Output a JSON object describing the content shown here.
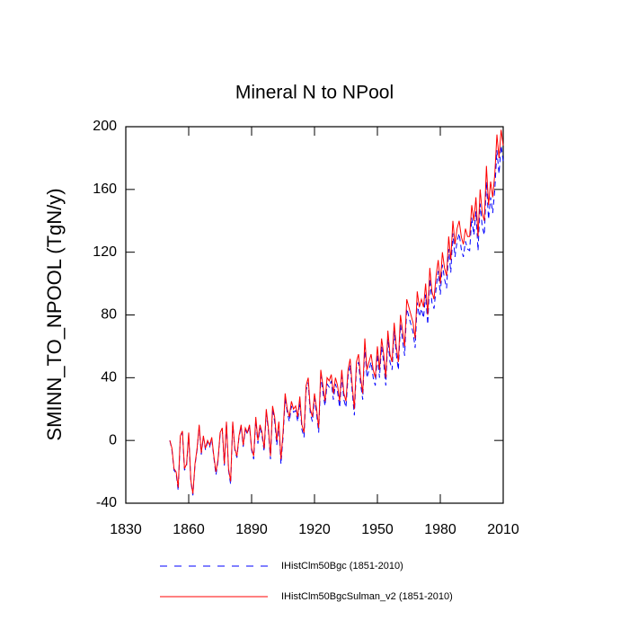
{
  "chart_data": {
    "type": "line",
    "title": "Mineral N to NPool",
    "y_label": "SMINN_TO_NPOOL  (TgN/y)",
    "x": [
      1851,
      1852,
      1853,
      1854,
      1855,
      1856,
      1857,
      1858,
      1859,
      1860,
      1861,
      1862,
      1863,
      1864,
      1865,
      1866,
      1867,
      1868,
      1869,
      1870,
      1871,
      1872,
      1873,
      1874,
      1875,
      1876,
      1877,
      1878,
      1879,
      1880,
      1881,
      1882,
      1883,
      1884,
      1885,
      1886,
      1887,
      1888,
      1889,
      1890,
      1891,
      1892,
      1893,
      1894,
      1895,
      1896,
      1897,
      1898,
      1899,
      1900,
      1901,
      1902,
      1903,
      1904,
      1905,
      1906,
      1907,
      1908,
      1909,
      1910,
      1911,
      1912,
      1913,
      1914,
      1915,
      1916,
      1917,
      1918,
      1919,
      1920,
      1921,
      1922,
      1923,
      1924,
      1925,
      1926,
      1927,
      1928,
      1929,
      1930,
      1931,
      1932,
      1933,
      1934,
      1935,
      1936,
      1937,
      1938,
      1939,
      1940,
      1941,
      1942,
      1943,
      1944,
      1945,
      1946,
      1947,
      1948,
      1949,
      1950,
      1951,
      1952,
      1953,
      1954,
      1955,
      1956,
      1957,
      1958,
      1959,
      1960,
      1961,
      1962,
      1963,
      1964,
      1965,
      1966,
      1967,
      1968,
      1969,
      1970,
      1971,
      1972,
      1973,
      1974,
      1975,
      1976,
      1977,
      1978,
      1979,
      1980,
      1981,
      1982,
      1983,
      1984,
      1985,
      1986,
      1987,
      1988,
      1989,
      1990,
      1991,
      1992,
      1993,
      1994,
      1995,
      1996,
      1997,
      1998,
      1999,
      2000,
      2001,
      2002,
      2003,
      2004,
      2005,
      2006,
      2007,
      2008,
      2009,
      2010
    ],
    "series": [
      {
        "name": "IHistClm50Bgc (1851-2010)",
        "color": "#0000ff",
        "dash": true,
        "values": [
          0,
          -6,
          -19,
          -21,
          -32,
          2,
          5,
          -19,
          -16,
          4,
          -26,
          -35,
          -16,
          -6,
          9,
          -9,
          2,
          -6,
          -1,
          -4,
          1,
          -11,
          -22,
          -13,
          4,
          7,
          -16,
          11,
          -19,
          -28,
          11,
          -6,
          -11,
          2,
          9,
          -4,
          7,
          4,
          9,
          -6,
          -12,
          13,
          -2,
          8,
          3,
          -7,
          18,
          6,
          -12,
          20,
          12,
          -3,
          10,
          -15,
          2,
          27,
          18,
          12,
          22,
          18,
          19,
          12,
          25,
          7,
          2,
          32,
          37,
          17,
          12,
          27,
          17,
          5,
          41,
          31,
          22,
          36,
          34,
          38,
          26,
          36,
          31,
          21,
          41,
          26,
          21,
          41,
          48,
          31,
          16,
          46,
          50,
          36,
          26,
          60,
          40,
          45,
          50,
          40,
          35,
          55,
          40,
          60,
          50,
          35,
          65,
          50,
          45,
          70,
          55,
          45,
          74,
          64,
          54,
          84,
          79,
          74,
          69,
          59,
          88,
          79,
          84,
          78,
          93,
          74,
          103,
          88,
          84,
          97,
          108,
          93,
          112,
          103,
          97,
          122,
          107,
          132,
          117,
          127,
          132,
          122,
          117,
          127,
          122,
          121,
          142,
          131,
          146,
          121,
          151,
          136,
          131,
          165,
          141,
          155,
          145,
          160,
          185,
          170,
          188,
          178
        ]
      },
      {
        "name": "IHistClm50BgcSulman_v2 (1851-2010)",
        "color": "#ff0000",
        "dash": false,
        "values": [
          0,
          -5,
          -18,
          -20,
          -30,
          3,
          6,
          -18,
          -15,
          5,
          -25,
          -34,
          -15,
          -5,
          10,
          -8,
          3,
          -5,
          0,
          -3,
          2,
          -10,
          -20,
          -12,
          5,
          8,
          -15,
          12,
          -18,
          -26,
          12,
          -5,
          -10,
          3,
          10,
          -3,
          8,
          5,
          10,
          -5,
          -10,
          15,
          0,
          10,
          5,
          -5,
          20,
          8,
          -10,
          22,
          15,
          0,
          12,
          -12,
          5,
          30,
          20,
          15,
          25,
          20,
          22,
          15,
          28,
          10,
          5,
          35,
          40,
          20,
          15,
          30,
          20,
          8,
          45,
          35,
          25,
          40,
          38,
          42,
          30,
          40,
          35,
          25,
          45,
          30,
          25,
          45,
          52,
          35,
          20,
          50,
          55,
          40,
          30,
          65,
          45,
          50,
          55,
          45,
          40,
          60,
          45,
          65,
          55,
          40,
          70,
          55,
          50,
          75,
          60,
          50,
          80,
          70,
          60,
          90,
          85,
          80,
          75,
          65,
          95,
          85,
          90,
          85,
          100,
          80,
          110,
          95,
          90,
          105,
          115,
          100,
          120,
          110,
          105,
          130,
          115,
          140,
          125,
          135,
          140,
          130,
          125,
          135,
          130,
          130,
          150,
          140,
          155,
          130,
          160,
          145,
          140,
          175,
          150,
          165,
          155,
          170,
          195,
          180,
          198,
          188
        ]
      }
    ],
    "xlim": [
      1830,
      2010
    ],
    "xticks": [
      1830,
      1860,
      1890,
      1920,
      1950,
      1980,
      2010
    ],
    "ylim": [
      -40,
      200
    ],
    "yticks": [
      -40,
      0,
      40,
      80,
      120,
      160,
      200
    ],
    "grid": false
  }
}
